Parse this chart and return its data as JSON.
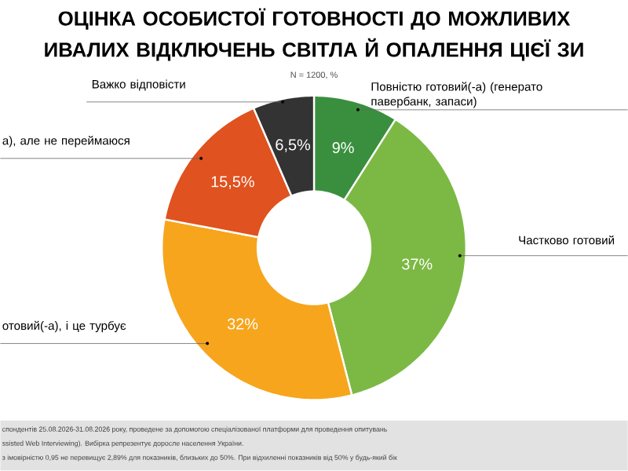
{
  "chart_data": {
    "type": "donut",
    "title": "ОЦІНКА ОСОБИСТОЇ ГОТОВНОСТІ ДО МОЖЛИВИХ ИВАЛИХ ВІДКЛЮЧЕНЬ СВІТЛА Й ОПАЛЕННЯ ЦІЄЇ ЗИ",
    "subtitle": "N = 1200, %",
    "categories": [
      "Повністю готовий(-а) (генерато павербанк, запаси)",
      "Частково готовий",
      "отовий(-а), і це турбує",
      "а), але не переймаюся",
      "Важко відповісти"
    ],
    "values": [
      9,
      37,
      32,
      15.5,
      6.5
    ],
    "colors": [
      "#3a8f3e",
      "#7cb944",
      "#f7a51c",
      "#e0521f",
      "#333333"
    ],
    "value_labels": [
      "9%",
      "37%",
      "32%",
      "15,5%",
      "6,5%"
    ],
    "annotations": [
      "спондентів 25.08.2026-31.08.2026 року, проведене за допомогою спеціалізованої платформи для проведення опитувань",
      "ssisted Web Interviewing). Вибірка репрезентує доросле населення України.",
      "з імовірністю 0,95 не перевищує 2,89% для показників, близьких до 50%. При відхиленні показників від 50% у будь-який бік"
    ]
  }
}
